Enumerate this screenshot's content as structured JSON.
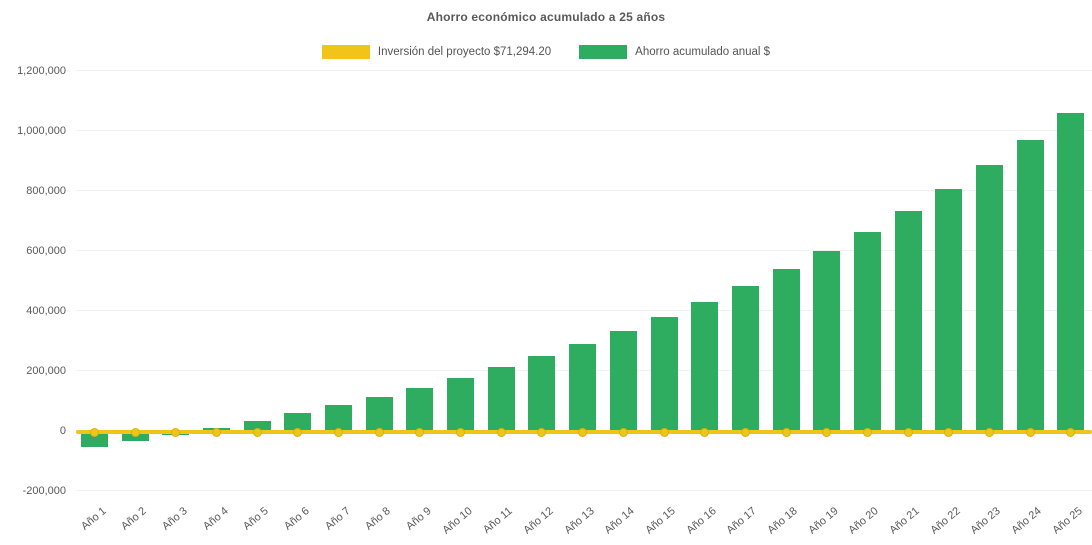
{
  "title": "Ahorro económico acumulado a 25 años",
  "legend": {
    "items": [
      {
        "label": "Inversión del proyecto $71,294.20",
        "color": "#F0C419"
      },
      {
        "label": "Ahorro acumulado anual $",
        "color": "#2EAC5F"
      }
    ]
  },
  "y_axis": {
    "tick_labels": [
      "1,200,000",
      "1,000,000",
      "800,000",
      "600,000",
      "400,000",
      "200,000",
      "0",
      "-200,000"
    ],
    "max": 1200000,
    "min": -200000,
    "step": 200000
  },
  "chart_data": {
    "type": "bar",
    "title": "Ahorro económico acumulado a 25 años",
    "categories": [
      "Año 1",
      "Año 2",
      "Año 3",
      "Año 4",
      "Año 5",
      "Año 6",
      "Año 7",
      "Año 8",
      "Año 9",
      "Año 10",
      "Año 11",
      "Año 12",
      "Año 13",
      "Año 14",
      "Año 15",
      "Año 16",
      "Año 17",
      "Año 18",
      "Año 19",
      "Año 20",
      "Año 21",
      "Año 22",
      "Año 23",
      "Año 24",
      "Año 25"
    ],
    "series": [
      {
        "name": "Ahorro acumulado anual $",
        "type": "bar",
        "color": "#2EAC5F",
        "values": [
          -53400,
          -34200,
          -13700,
          8200,
          31700,
          56800,
          83600,
          112400,
          143100,
          176000,
          211200,
          248900,
          289200,
          332300,
          378500,
          427800,
          480600,
          537100,
          597500,
          662200,
          731300,
          805300,
          884500,
          969200,
          1059800
        ]
      },
      {
        "name": "Inversión del proyecto $71,294.20",
        "type": "line",
        "color": "#F0C419",
        "marker": "circle",
        "investment_amount": "71,294.20",
        "plotted_constant_value": 0
      }
    ],
    "ylim": [
      -200000,
      1200000
    ],
    "grid": "faint-horizontal",
    "legend_position": "top-center"
  }
}
